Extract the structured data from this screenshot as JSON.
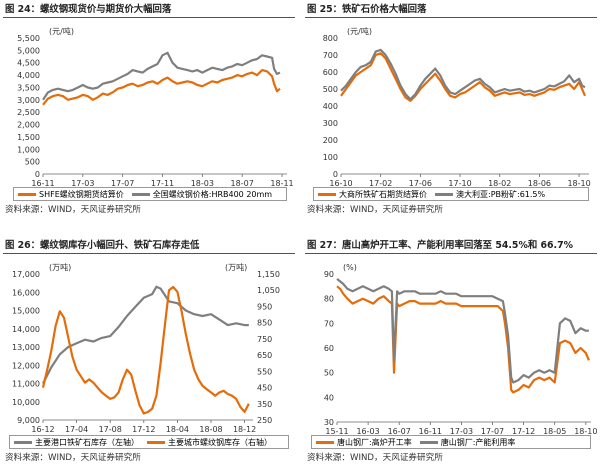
{
  "colors": {
    "orange": "#e46c0a",
    "gray": "#7f7f7f",
    "title_rule": "#2f5597"
  },
  "panels": [
    {
      "title": "图 24：螺纹钢现货价与期货价大幅回落",
      "source": "资料来源：WIND，天风证券研究所",
      "unit_label": "(元/吨)",
      "legend": [
        "SHFE螺纹钢期货结算价",
        "全国螺纹钢价格:HRB400 20mm"
      ]
    },
    {
      "title": "图 25：铁矿石价格大幅回落",
      "source": "资料来源：WIND，天风证券研究所",
      "unit_label": "(元/吨)",
      "legend": [
        "大商所铁矿石期货结算价",
        "澳大利亚:PB粉矿:61.5%"
      ]
    },
    {
      "title": "图 26：螺纹钢库存小幅回升、铁矿石库存走低",
      "source": "资料来源：WIND，天风证券研究所",
      "unit_label": "(万吨)",
      "unit_label_right": "(万吨)",
      "legend": [
        "主要港口铁矿石库存（左轴）",
        "主要城市螺纹钢库存（右轴）"
      ]
    },
    {
      "title": "图 27：唐山高炉开工率、产能利用率回落至 54.5%和 66.7%",
      "source": "资料来源：WIND，天风证券研究所",
      "unit_label": "(%)",
      "legend": [
        "唐山钢厂:高炉开工率",
        "唐山钢厂:产能利用率"
      ]
    }
  ],
  "chart_data": [
    {
      "type": "line",
      "title": "螺纹钢现货价与期货价大幅回落",
      "ylabel": "(元/吨)",
      "ylim": [
        0,
        5500
      ],
      "yticks": [
        "0",
        "500",
        "1,000",
        "1,500",
        "2,000",
        "2,500",
        "3,000",
        "3,500",
        "4,000",
        "4,500",
        "5,000",
        "5,500"
      ],
      "xlim": [
        0,
        24.5
      ],
      "xtick_positions": [
        0,
        4,
        8,
        12,
        16,
        20,
        24
      ],
      "xtick_labels": [
        "16-11",
        "17-03",
        "17-07",
        "17-11",
        "18-03",
        "18-07",
        "18-11"
      ],
      "series": [
        {
          "name": "SHFE螺纹钢期货结算价",
          "color": "#e46c0a",
          "x": [
            0,
            0.5,
            1,
            1.5,
            2,
            2.5,
            3,
            3.5,
            4,
            4.5,
            5,
            5.5,
            6,
            6.5,
            7,
            7.5,
            8,
            8.5,
            9,
            9.5,
            10,
            10.5,
            11,
            11.5,
            12,
            12.5,
            13,
            13.5,
            14,
            14.5,
            15,
            15.5,
            16,
            16.5,
            17,
            17.5,
            18,
            18.5,
            19,
            19.5,
            20,
            20.5,
            21,
            21.5,
            22,
            22.5,
            23,
            23.2,
            23.5,
            23.8
          ],
          "y": [
            2800,
            3050,
            3150,
            3200,
            3150,
            3000,
            3050,
            3100,
            3200,
            3150,
            3000,
            3100,
            3250,
            3200,
            3300,
            3450,
            3500,
            3600,
            3650,
            3550,
            3600,
            3700,
            3750,
            3650,
            3800,
            3900,
            3750,
            3650,
            3700,
            3750,
            3700,
            3600,
            3550,
            3650,
            3750,
            3700,
            3800,
            3850,
            3900,
            4000,
            3950,
            4050,
            4100,
            4000,
            4200,
            4150,
            3950,
            3650,
            3350,
            3450
          ]
        },
        {
          "name": "全国螺纹钢价格:HRB400 20mm",
          "color": "#7f7f7f",
          "x": [
            0,
            0.5,
            1,
            1.5,
            2,
            2.5,
            3,
            3.5,
            4,
            4.5,
            5,
            5.5,
            6,
            6.5,
            7,
            7.5,
            8,
            8.5,
            9,
            9.5,
            10,
            10.5,
            11,
            11.5,
            12,
            12.5,
            13,
            13.5,
            14,
            14.5,
            15,
            15.5,
            16,
            16.5,
            17,
            17.5,
            18,
            18.5,
            19,
            19.5,
            20,
            20.5,
            21,
            21.5,
            22,
            22.5,
            23,
            23.2,
            23.5,
            23.8
          ],
          "y": [
            3000,
            3300,
            3400,
            3450,
            3400,
            3350,
            3400,
            3500,
            3600,
            3500,
            3450,
            3500,
            3650,
            3700,
            3750,
            3850,
            3950,
            4050,
            4200,
            4150,
            4100,
            4250,
            4350,
            4450,
            4800,
            4900,
            4500,
            4300,
            4250,
            4200,
            4150,
            4200,
            4100,
            4200,
            4300,
            4250,
            4200,
            4300,
            4350,
            4450,
            4400,
            4500,
            4600,
            4650,
            4800,
            4750,
            4700,
            4250,
            4050,
            4100
          ]
        }
      ]
    },
    {
      "type": "line",
      "title": "铁矿石价格大幅回落",
      "ylabel": "(元/吨)",
      "ylim": [
        0,
        800
      ],
      "yticks": [
        "0",
        "100",
        "200",
        "300",
        "400",
        "500",
        "600",
        "700",
        "800"
      ],
      "xlim": [
        0,
        25
      ],
      "xtick_positions": [
        0,
        4,
        8,
        12,
        16,
        20,
        24
      ],
      "xtick_labels": [
        "16-10",
        "17-02",
        "17-06",
        "17-10",
        "18-02",
        "18-06",
        "18-10"
      ],
      "series": [
        {
          "name": "大商所铁矿石期货结算价",
          "color": "#e46c0a",
          "x": [
            0,
            0.5,
            1,
            1.5,
            2,
            2.5,
            3,
            3.5,
            4,
            4.5,
            5,
            5.5,
            6,
            6.5,
            7,
            7.5,
            8,
            8.5,
            9,
            9.5,
            10,
            10.5,
            11,
            11.5,
            12,
            12.5,
            13,
            13.5,
            14,
            14.5,
            15,
            15.5,
            16,
            16.5,
            17,
            17.5,
            18,
            18.5,
            19,
            19.5,
            20,
            20.5,
            21,
            21.5,
            22,
            22.5,
            23,
            23.5,
            24,
            24.3,
            24.6
          ],
          "y": [
            460,
            500,
            540,
            580,
            600,
            620,
            640,
            700,
            710,
            680,
            620,
            560,
            500,
            450,
            430,
            460,
            500,
            530,
            560,
            590,
            550,
            500,
            460,
            450,
            470,
            480,
            500,
            520,
            540,
            510,
            490,
            460,
            470,
            480,
            470,
            475,
            480,
            465,
            470,
            460,
            470,
            480,
            500,
            495,
            510,
            520,
            530,
            500,
            540,
            500,
            460
          ]
        },
        {
          "name": "澳大利亚:PB粉矿:61.5%",
          "color": "#7f7f7f",
          "x": [
            0,
            0.5,
            1,
            1.5,
            2,
            2.5,
            3,
            3.5,
            4,
            4.5,
            5,
            5.5,
            6,
            6.5,
            7,
            7.5,
            8,
            8.5,
            9,
            9.5,
            10,
            10.5,
            11,
            11.5,
            12,
            12.5,
            13,
            13.5,
            14,
            14.5,
            15,
            15.5,
            16,
            16.5,
            17,
            17.5,
            18,
            18.5,
            19,
            19.5,
            20,
            20.5,
            21,
            21.5,
            22,
            22.5,
            23,
            23.5,
            24,
            24.3,
            24.6
          ],
          "y": [
            490,
            520,
            560,
            600,
            630,
            640,
            660,
            720,
            730,
            700,
            650,
            590,
            520,
            470,
            440,
            470,
            520,
            560,
            590,
            620,
            580,
            520,
            480,
            470,
            490,
            510,
            530,
            550,
            560,
            530,
            510,
            480,
            490,
            500,
            490,
            495,
            500,
            485,
            490,
            480,
            490,
            500,
            520,
            515,
            530,
            545,
            580,
            540,
            560,
            520,
            510
          ]
        }
      ]
    },
    {
      "type": "line",
      "title": "螺纹钢库存小幅回升、铁矿石库存走低",
      "ylabel": "(万吨)",
      "ylabel_right": "(万吨)",
      "ylim": [
        9000,
        17000
      ],
      "ylim_right": [
        250,
        1150
      ],
      "yticks": [
        "9,000",
        "10,000",
        "11,000",
        "12,000",
        "13,000",
        "14,000",
        "15,000",
        "16,000",
        "17,000"
      ],
      "yticks_right": [
        "250",
        "350",
        "450",
        "550",
        "650",
        "750",
        "850",
        "950",
        "1,050",
        "1,150"
      ],
      "xlim": [
        0,
        25
      ],
      "xtick_positions": [
        0,
        4,
        8,
        12,
        16,
        20,
        24
      ],
      "xtick_labels": [
        "16-12",
        "17-04",
        "17-08",
        "17-12",
        "18-04",
        "18-08",
        "18-12"
      ],
      "series": [
        {
          "name": "主要港口铁矿石库存（左轴）",
          "color": "#7f7f7f",
          "axis": "left",
          "x": [
            0,
            1,
            2,
            3,
            4,
            5,
            6,
            7,
            8,
            9,
            10,
            11,
            12,
            13,
            13.5,
            14,
            15,
            16,
            17,
            18,
            19,
            20,
            21,
            22,
            23,
            24,
            24.5
          ],
          "y": [
            11000,
            11900,
            12600,
            13000,
            13200,
            13400,
            13300,
            13500,
            13600,
            14100,
            14700,
            15200,
            15700,
            15900,
            16300,
            16200,
            15500,
            15400,
            15000,
            14800,
            14700,
            14800,
            14500,
            14200,
            14300,
            14200,
            14200
          ]
        },
        {
          "name": "主要城市螺纹钢库存（右轴）",
          "color": "#e46c0a",
          "axis": "right",
          "x": [
            0,
            0.5,
            1,
            1.5,
            2,
            2.5,
            3,
            3.5,
            4,
            4.5,
            5,
            5.5,
            6,
            6.5,
            7,
            7.5,
            8,
            8.5,
            9,
            9.5,
            10,
            10.5,
            11,
            11.5,
            12,
            12.5,
            13,
            13.5,
            14,
            14.5,
            15,
            15.5,
            16,
            16.5,
            17,
            17.5,
            18,
            18.5,
            19,
            19.5,
            20,
            20.5,
            21,
            21.5,
            22,
            22.5,
            23,
            23.5,
            24,
            24.5
          ],
          "y": [
            450,
            560,
            680,
            830,
            920,
            880,
            760,
            640,
            560,
            520,
            480,
            500,
            480,
            450,
            420,
            400,
            380,
            390,
            420,
            500,
            560,
            530,
            430,
            340,
            290,
            300,
            320,
            400,
            600,
            830,
            1050,
            1070,
            1040,
            920,
            780,
            660,
            560,
            500,
            460,
            440,
            420,
            400,
            420,
            430,
            410,
            400,
            380,
            330,
            300,
            350
          ]
        }
      ]
    },
    {
      "type": "line",
      "title": "唐山高炉开工率、产能利用率回落至 54.5%和 66.7%",
      "ylabel": "(%)",
      "ylim": [
        30,
        90
      ],
      "yticks": [
        "30",
        "40",
        "50",
        "60",
        "70",
        "80",
        "90"
      ],
      "xlim": [
        0,
        24.5
      ],
      "xtick_positions": [
        0,
        3,
        6,
        9,
        12,
        15,
        18,
        21,
        24
      ],
      "xtick_labels": [
        "15-11",
        "16-03",
        "16-07",
        "16-11",
        "17-03",
        "17-07",
        "17-12",
        "18-05",
        "18-10"
      ],
      "series": [
        {
          "name": "唐山钢厂:高炉开工率",
          "color": "#e46c0a",
          "x": [
            0,
            0.3,
            0.6,
            1,
            1.5,
            2,
            2.5,
            3,
            3.5,
            4,
            4.5,
            5,
            5.3,
            5.5,
            5.8,
            6,
            6.5,
            7,
            7.5,
            8,
            8.5,
            9,
            9.5,
            10,
            10.5,
            11,
            11.5,
            12,
            12.5,
            13,
            13.5,
            14,
            14.5,
            15,
            15.5,
            16,
            16.2,
            16.5,
            16.8,
            17,
            17.5,
            18,
            18.5,
            19,
            19.5,
            20,
            20.5,
            21,
            21.5,
            22,
            22.5,
            23,
            23.5,
            24,
            24.3
          ],
          "y": [
            85,
            84,
            82,
            80,
            78,
            79,
            80,
            79,
            78,
            80,
            81,
            79,
            78,
            50,
            78,
            77,
            78,
            79,
            79,
            78,
            78,
            78,
            78,
            79,
            78,
            78,
            78,
            77,
            77,
            77,
            77,
            77,
            77,
            77,
            77,
            75,
            70,
            60,
            43,
            42,
            43,
            45,
            44,
            47,
            48,
            47,
            48,
            46,
            62,
            63,
            62,
            58,
            60,
            58,
            55
          ]
        },
        {
          "name": "唐山钢厂:产能利用率",
          "color": "#7f7f7f",
          "x": [
            0,
            0.3,
            0.6,
            1,
            1.5,
            2,
            2.5,
            3,
            3.5,
            4,
            4.5,
            5,
            5.3,
            5.5,
            5.8,
            6,
            6.5,
            7,
            7.5,
            8,
            8.5,
            9,
            9.5,
            10,
            10.5,
            11,
            11.5,
            12,
            12.5,
            13,
            13.5,
            14,
            14.5,
            15,
            15.5,
            16,
            16.2,
            16.5,
            16.8,
            17,
            17.5,
            18,
            18.5,
            19,
            19.5,
            20,
            20.5,
            21,
            21.5,
            22,
            22.5,
            23,
            23.5,
            24,
            24.3
          ],
          "y": [
            88,
            87,
            86,
            84,
            83,
            84,
            85,
            84,
            83,
            84,
            85,
            84,
            83,
            55,
            83,
            82,
            83,
            83,
            83,
            82,
            82,
            82,
            82,
            83,
            82,
            82,
            82,
            81,
            81,
            81,
            81,
            81,
            81,
            81,
            80,
            79,
            74,
            65,
            48,
            46,
            47,
            49,
            48,
            50,
            51,
            50,
            51,
            50,
            70,
            72,
            71,
            66,
            68,
            67,
            67
          ]
        }
      ]
    }
  ]
}
